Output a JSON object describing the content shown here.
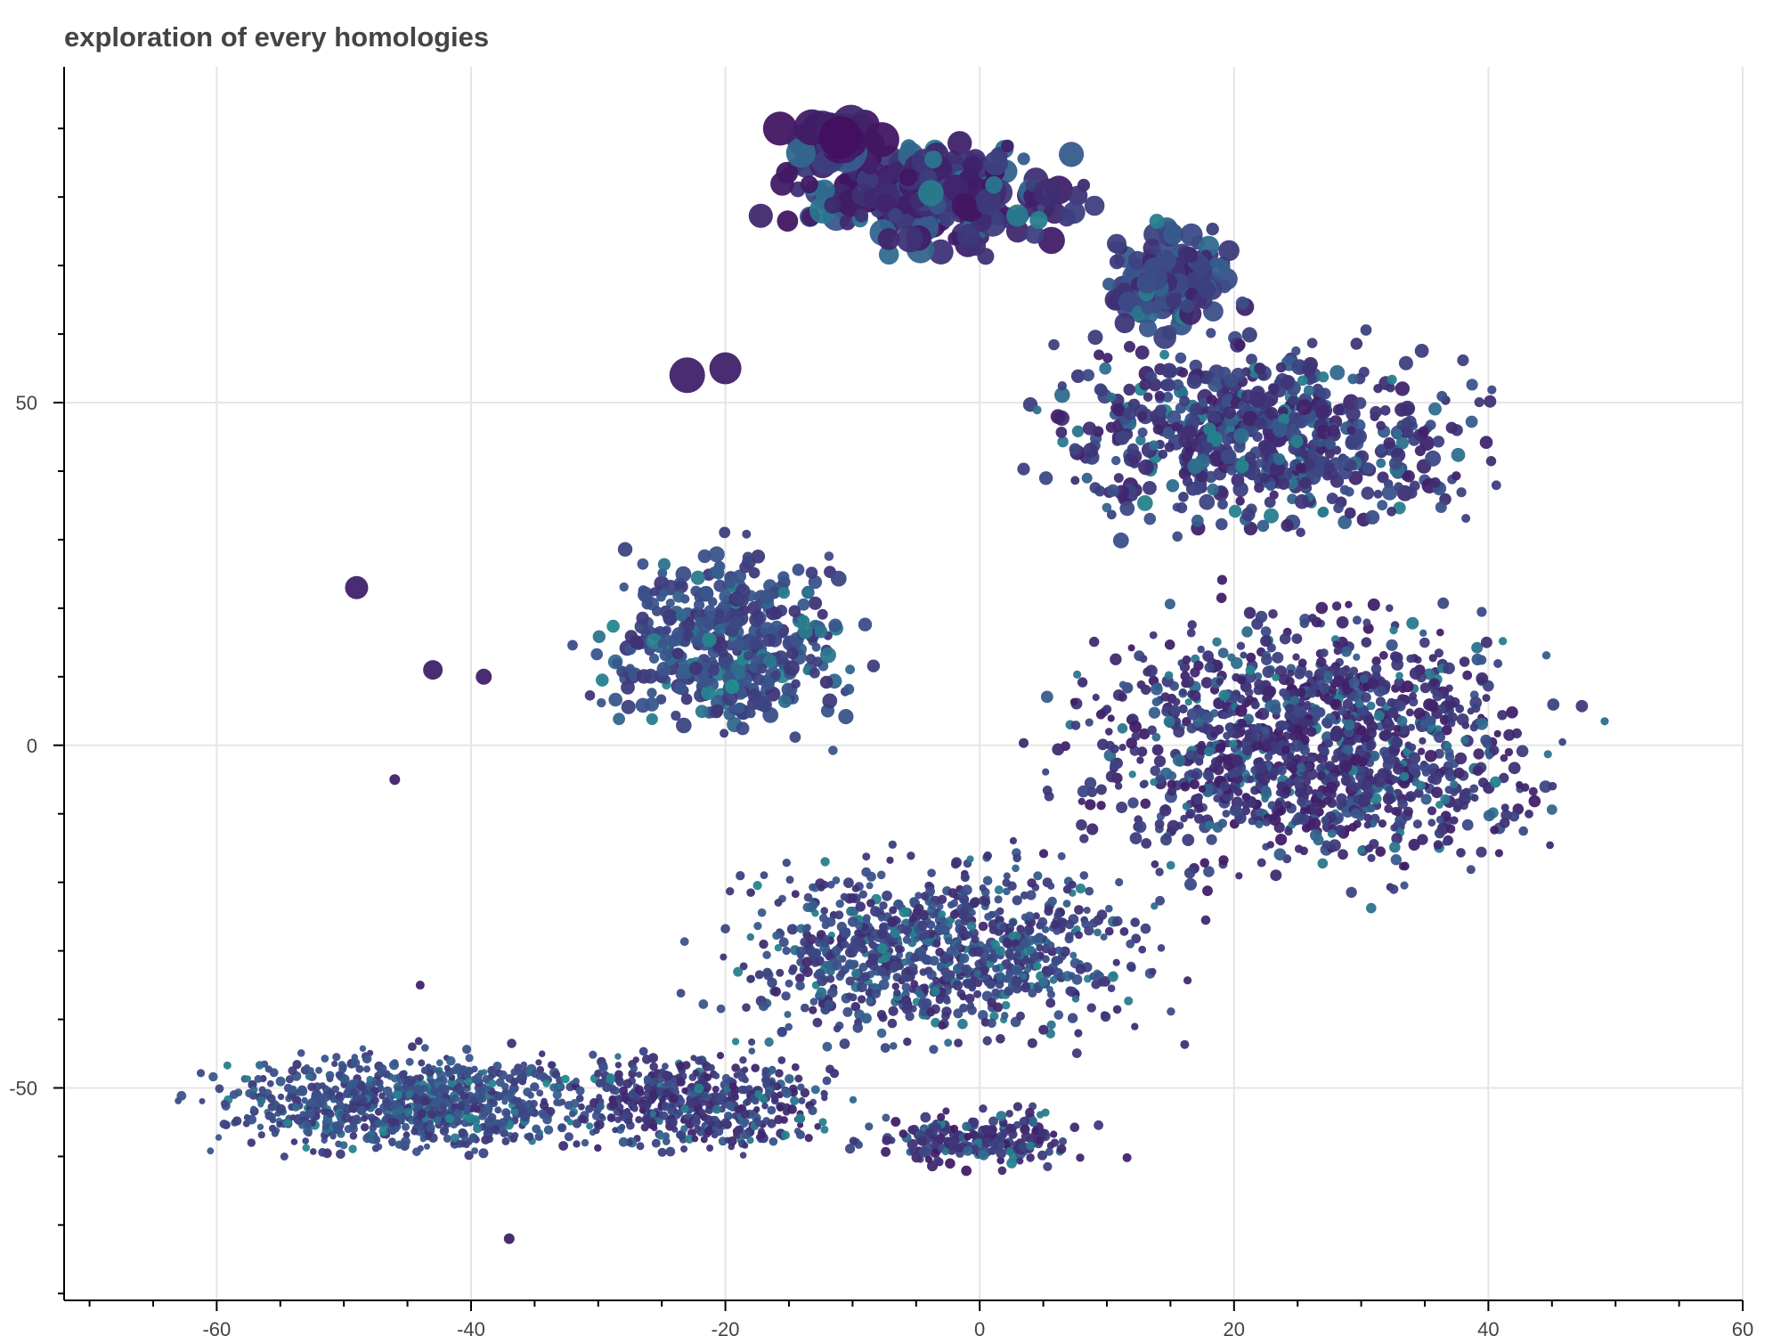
{
  "chart_data": {
    "type": "scatter",
    "title": "exploration of every homologies",
    "xlabel": "",
    "ylabel": "",
    "xlim": [
      -72,
      60
    ],
    "ylim": [
      -81,
      99
    ],
    "grid": true,
    "x_ticks": [
      -60,
      -40,
      -20,
      0,
      20,
      40,
      60
    ],
    "x_tick_labels": [
      "-60",
      "-40",
      "-20",
      "0",
      "20",
      "40",
      "60"
    ],
    "y_ticks": [
      -50,
      0,
      50
    ],
    "y_tick_labels": [
      "-50",
      "0",
      "50"
    ],
    "colormap": [
      "#440154",
      "#3b528b",
      "#2c728e",
      "#21918c",
      "#35b779"
    ],
    "description_regions": [
      {
        "name": "top-left dense cluster",
        "x_range": [
          -18,
          10
        ],
        "y_range": [
          62,
          92
        ],
        "size": "large",
        "color_level": 0.05
      },
      {
        "name": "upper-mid cluster",
        "x_range": [
          10,
          25
        ],
        "y_range": [
          55,
          80
        ],
        "size": "large",
        "color_level": 0.1
      },
      {
        "name": "upper-right lobe",
        "x_range": [
          -5,
          48
        ],
        "y_range": [
          25,
          70
        ],
        "size": "medium",
        "color_level": 0.1
      },
      {
        "name": "left-middle cluster",
        "x_range": [
          -35,
          -5
        ],
        "y_range": [
          -5,
          35
        ],
        "size": "medium",
        "color_level": 0.15
      },
      {
        "name": "right body",
        "x_range": [
          0,
          53
        ],
        "y_range": [
          -30,
          25
        ],
        "size": "medium",
        "color_level": 0.08
      },
      {
        "name": "lower band",
        "x_range": [
          -68,
          20
        ],
        "y_range": [
          -65,
          -25
        ],
        "size": "small",
        "color_level": 0.12
      }
    ]
  }
}
